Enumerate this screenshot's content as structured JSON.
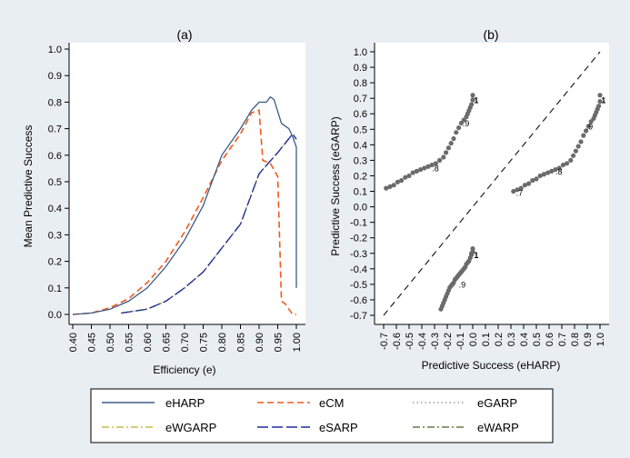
{
  "panel_a": {
    "title": "(a)",
    "xlabel": "Efficiency (e)",
    "ylabel": "Mean Predictive Success"
  },
  "panel_b": {
    "title": "(b)",
    "xlabel": "Predictive Success (eHARP)",
    "ylabel": "Predictive Success (eGARP)"
  },
  "legend": {
    "items": [
      {
        "label": "eHARP",
        "color": "#3b5c87",
        "style": "solid"
      },
      {
        "label": "eCM",
        "color": "#f05a1e",
        "style": "dash"
      },
      {
        "label": "eGARP",
        "color": "#9a9a9a",
        "style": "dot"
      },
      {
        "label": "eWGARP",
        "color": "#c9b84a",
        "style": "dashdot"
      },
      {
        "label": "eSARP",
        "color": "#1f2f9e",
        "style": "longdash"
      },
      {
        "label": "eWARP",
        "color": "#6a7a4a",
        "style": "dashdot"
      }
    ]
  },
  "chart_data": [
    {
      "type": "line",
      "title": "(a)",
      "xlabel": "Efficiency (e)",
      "ylabel": "Mean Predictive Success",
      "xlim": [
        0.4,
        1.0
      ],
      "ylim": [
        0.0,
        1.0
      ],
      "xticks": [
        "0.40",
        "0.45",
        "0.50",
        "0.55",
        "0.60",
        "0.65",
        "0.70",
        "0.75",
        "0.80",
        "0.85",
        "0.90",
        "0.95",
        "1.00"
      ],
      "yticks": [
        "0.0",
        "0.1",
        "0.2",
        "0.3",
        "0.4",
        "0.5",
        "0.6",
        "0.7",
        "0.8",
        "0.9",
        "1.0"
      ],
      "series": [
        {
          "name": "eHARP",
          "x": [
            0.4,
            0.45,
            0.5,
            0.55,
            0.6,
            0.65,
            0.7,
            0.75,
            0.8,
            0.85,
            0.88,
            0.9,
            0.92,
            0.93,
            0.94,
            0.96,
            0.98,
            0.99,
            1.0,
            1.0
          ],
          "y": [
            0.0,
            0.005,
            0.02,
            0.05,
            0.1,
            0.18,
            0.28,
            0.41,
            0.6,
            0.7,
            0.77,
            0.8,
            0.8,
            0.82,
            0.81,
            0.72,
            0.7,
            0.67,
            0.63,
            0.1
          ]
        },
        {
          "name": "eCM",
          "x": [
            0.4,
            0.45,
            0.5,
            0.55,
            0.6,
            0.65,
            0.7,
            0.75,
            0.8,
            0.85,
            0.88,
            0.9,
            0.91,
            0.93,
            0.95,
            0.96,
            0.97,
            0.98,
            0.99,
            1.0
          ],
          "y": [
            0.0,
            0.005,
            0.025,
            0.06,
            0.12,
            0.2,
            0.31,
            0.44,
            0.58,
            0.68,
            0.76,
            0.77,
            0.58,
            0.57,
            0.52,
            0.05,
            0.04,
            0.02,
            0.0,
            0.0
          ]
        },
        {
          "name": "eGARP",
          "x": [
            0.53,
            0.6,
            0.65,
            0.7,
            0.75,
            0.8,
            0.85,
            0.9,
            0.95,
            0.99,
            1.0
          ],
          "y": [
            0.005,
            0.02,
            0.05,
            0.1,
            0.16,
            0.25,
            0.34,
            0.53,
            0.61,
            0.68,
            0.66
          ]
        },
        {
          "name": "eWGARP",
          "x": [
            0.53,
            0.6,
            0.65,
            0.7,
            0.75,
            0.8,
            0.85,
            0.9,
            0.95,
            0.99,
            1.0
          ],
          "y": [
            0.005,
            0.02,
            0.05,
            0.1,
            0.16,
            0.25,
            0.34,
            0.53,
            0.61,
            0.68,
            0.66
          ]
        },
        {
          "name": "eSARP",
          "x": [
            0.53,
            0.6,
            0.65,
            0.7,
            0.75,
            0.8,
            0.85,
            0.9,
            0.95,
            0.99,
            1.0
          ],
          "y": [
            0.005,
            0.02,
            0.05,
            0.1,
            0.16,
            0.25,
            0.34,
            0.53,
            0.61,
            0.68,
            0.66
          ]
        },
        {
          "name": "eWARP",
          "x": [
            0.53,
            0.6,
            0.65,
            0.7,
            0.75,
            0.8,
            0.85,
            0.9,
            0.95,
            0.99,
            1.0
          ],
          "y": [
            0.005,
            0.02,
            0.05,
            0.1,
            0.16,
            0.25,
            0.34,
            0.53,
            0.61,
            0.68,
            0.66
          ]
        }
      ]
    },
    {
      "type": "scatter",
      "title": "(b)",
      "xlabel": "Predictive Success (eHARP)",
      "ylabel": "Predictive Success (eGARP)",
      "xlim": [
        -0.7,
        1.0
      ],
      "ylim": [
        -0.7,
        1.0
      ],
      "ticks": [
        "-0.7",
        "-0.6",
        "-0.5",
        "-0.4",
        "-0.3",
        "-0.2",
        "-0.1",
        "0.0",
        "0.1",
        "0.2",
        "0.3",
        "0.4",
        "0.5",
        "0.6",
        "0.7",
        "0.8",
        "0.9",
        "1.0"
      ],
      "reference_line": "45-degree dashed diagonal",
      "groups": [
        {
          "x": [
            -0.68,
            -0.65,
            -0.62,
            -0.59,
            -0.56,
            -0.53,
            -0.5,
            -0.47,
            -0.44,
            -0.41,
            -0.38,
            -0.35,
            -0.32,
            -0.29,
            -0.26,
            -0.23,
            -0.21,
            -0.19,
            -0.17,
            -0.15,
            -0.13,
            -0.11,
            -0.09,
            -0.07,
            -0.05,
            -0.04,
            -0.03,
            -0.02,
            -0.01,
            0.0,
            0.0
          ],
          "y": [
            0.12,
            0.13,
            0.14,
            0.16,
            0.17,
            0.19,
            0.2,
            0.22,
            0.23,
            0.24,
            0.25,
            0.26,
            0.27,
            0.28,
            0.3,
            0.32,
            0.35,
            0.38,
            0.41,
            0.44,
            0.48,
            0.51,
            0.54,
            0.56,
            0.58,
            0.6,
            0.62,
            0.64,
            0.66,
            0.69,
            0.72
          ],
          "labels": [
            {
              "text": ".8",
              "x": -0.32,
              "y": 0.23
            },
            {
              "text": ".9",
              "x": -0.08,
              "y": 0.52
            },
            {
              "text": "1",
              "x": 0.01,
              "y": 0.67
            }
          ]
        },
        {
          "x": [
            0.32,
            0.35,
            0.38,
            0.41,
            0.44,
            0.47,
            0.5,
            0.53,
            0.56,
            0.59,
            0.62,
            0.65,
            0.68,
            0.71,
            0.74,
            0.77,
            0.79,
            0.81,
            0.83,
            0.85,
            0.87,
            0.89,
            0.91,
            0.93,
            0.95,
            0.96,
            0.97,
            0.98,
            0.99,
            1.0,
            1.0
          ],
          "y": [
            0.1,
            0.11,
            0.12,
            0.14,
            0.15,
            0.17,
            0.18,
            0.2,
            0.21,
            0.22,
            0.23,
            0.24,
            0.25,
            0.27,
            0.28,
            0.3,
            0.33,
            0.36,
            0.39,
            0.42,
            0.46,
            0.49,
            0.52,
            0.55,
            0.57,
            0.59,
            0.61,
            0.63,
            0.65,
            0.68,
            0.72
          ],
          "labels": [
            {
              "text": ".7",
              "x": 0.34,
              "y": 0.07
            },
            {
              "text": ".8",
              "x": 0.65,
              "y": 0.21
            },
            {
              "text": ".9",
              "x": 0.89,
              "y": 0.5
            },
            {
              "text": "1",
              "x": 1.01,
              "y": 0.67
            }
          ]
        },
        {
          "x": [
            -0.25,
            -0.24,
            -0.23,
            -0.22,
            -0.21,
            -0.2,
            -0.19,
            -0.18,
            -0.17,
            -0.16,
            -0.15,
            -0.14,
            -0.13,
            -0.12,
            -0.11,
            -0.1,
            -0.09,
            -0.08,
            -0.07,
            -0.06,
            -0.05,
            -0.04,
            -0.03,
            -0.02,
            -0.01,
            -0.01,
            0.0,
            0.0
          ],
          "y": [
            -0.66,
            -0.64,
            -0.62,
            -0.6,
            -0.58,
            -0.56,
            -0.54,
            -0.52,
            -0.51,
            -0.5,
            -0.49,
            -0.47,
            -0.46,
            -0.45,
            -0.44,
            -0.43,
            -0.42,
            -0.41,
            -0.4,
            -0.39,
            -0.37,
            -0.36,
            -0.35,
            -0.33,
            -0.31,
            -0.3,
            -0.29,
            -0.27
          ],
          "labels": [
            {
              "text": ".9",
              "x": -0.11,
              "y": -0.52
            },
            {
              "text": "1",
              "x": 0.01,
              "y": -0.33
            }
          ]
        }
      ]
    }
  ]
}
